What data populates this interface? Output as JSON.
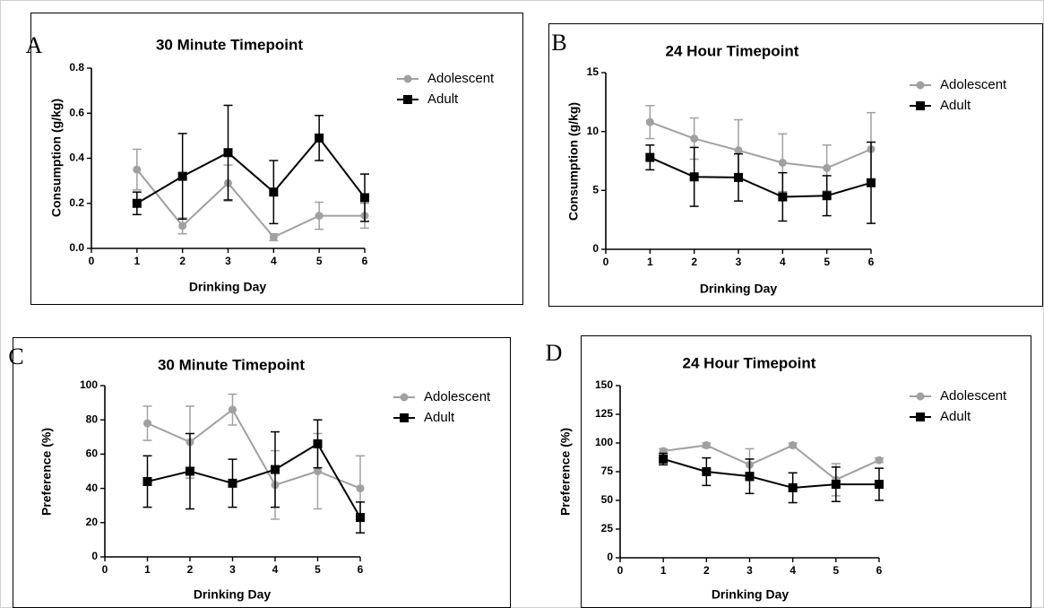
{
  "colors": {
    "adolescent": "#a0a0a0",
    "adult": "#000000"
  },
  "chart_data": [
    {
      "panel": "A",
      "type": "line",
      "title": "30 Minute Timepoint",
      "xlabel": "Drinking Day",
      "ylabel": "Consumption (g/kg)",
      "xlim": [
        0,
        6
      ],
      "ylim": [
        0,
        0.8
      ],
      "xticks": [
        "0",
        "1",
        "2",
        "3",
        "4",
        "5",
        "6"
      ],
      "yticks": [
        "0.0",
        "0.2",
        "0.4",
        "0.6",
        "0.8"
      ],
      "legend_position": "top-right",
      "x": [
        1,
        2,
        3,
        4,
        5,
        6
      ],
      "series": [
        {
          "name": "Adolescent",
          "marker": "circle",
          "values": [
            0.35,
            0.1,
            0.29,
            0.05,
            0.145,
            0.145
          ],
          "errors": [
            0.09,
            0.035,
            0.08,
            0.015,
            0.06,
            0.055
          ]
        },
        {
          "name": "Adult",
          "marker": "square",
          "values": [
            0.2,
            0.32,
            0.425,
            0.25,
            0.49,
            0.225
          ],
          "errors": [
            0.05,
            0.19,
            0.21,
            0.14,
            0.1,
            0.105
          ]
        }
      ]
    },
    {
      "panel": "B",
      "type": "line",
      "title": "24 Hour Timepoint",
      "xlabel": "Drinking Day",
      "ylabel": "Consumption (g/kg)",
      "xlim": [
        0,
        6
      ],
      "ylim": [
        0,
        15
      ],
      "xticks": [
        "0",
        "1",
        "2",
        "3",
        "4",
        "5",
        "6"
      ],
      "yticks": [
        "0",
        "5",
        "10",
        "15"
      ],
      "legend_position": "top-right",
      "x": [
        1,
        2,
        3,
        4,
        5,
        6
      ],
      "series": [
        {
          "name": "Adolescent",
          "marker": "circle",
          "values": [
            10.8,
            9.4,
            8.4,
            7.35,
            6.9,
            8.5
          ],
          "errors": [
            1.4,
            1.75,
            2.6,
            2.45,
            1.95,
            3.1
          ]
        },
        {
          "name": "Adult",
          "marker": "square",
          "values": [
            7.8,
            6.15,
            6.1,
            4.45,
            4.55,
            5.65
          ],
          "errors": [
            1.05,
            2.5,
            2.0,
            2.05,
            1.7,
            3.45
          ]
        }
      ]
    },
    {
      "panel": "C",
      "type": "line",
      "title": "30 Minute Timepoint",
      "xlabel": "Drinking Day",
      "ylabel": "Preference (%)",
      "xlim": [
        0,
        6
      ],
      "ylim": [
        0,
        100
      ],
      "xticks": [
        "0",
        "1",
        "2",
        "3",
        "4",
        "5",
        "6"
      ],
      "yticks": [
        "0",
        "20",
        "40",
        "60",
        "80",
        "100"
      ],
      "legend_position": "top-right",
      "x": [
        1,
        2,
        3,
        4,
        5,
        6
      ],
      "series": [
        {
          "name": "Adolescent",
          "marker": "circle",
          "values": [
            78,
            67,
            86,
            42,
            50,
            40
          ],
          "errors": [
            10,
            21,
            9,
            20,
            22,
            19
          ]
        },
        {
          "name": "Adult",
          "marker": "square",
          "values": [
            44,
            50,
            43,
            51,
            66,
            23
          ],
          "errors": [
            15,
            22,
            14,
            22,
            14,
            9
          ]
        }
      ]
    },
    {
      "panel": "D",
      "type": "line",
      "title": "24 Hour Timepoint",
      "xlabel": "Drinking Day",
      "ylabel": "Preference (%)",
      "xlim": [
        0,
        6
      ],
      "ylim": [
        0,
        150
      ],
      "xticks": [
        "0",
        "1",
        "2",
        "3",
        "4",
        "5",
        "6"
      ],
      "yticks": [
        "0",
        "25",
        "50",
        "75",
        "100",
        "125",
        "150"
      ],
      "legend_position": "top-right",
      "x": [
        1,
        2,
        3,
        4,
        5,
        6
      ],
      "series": [
        {
          "name": "Adolescent",
          "marker": "circle",
          "values": [
            93,
            98,
            81,
            98,
            68,
            85
          ],
          "errors": [
            2,
            2,
            14,
            2,
            14,
            2
          ]
        },
        {
          "name": "Adult",
          "marker": "square",
          "values": [
            86,
            75,
            71,
            61,
            64,
            64
          ],
          "errors": [
            5,
            12,
            15,
            13,
            15,
            14
          ]
        }
      ]
    }
  ]
}
